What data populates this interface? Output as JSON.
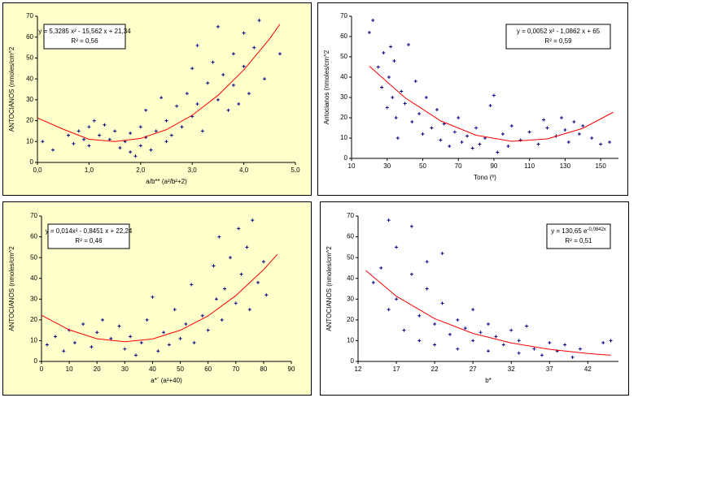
{
  "chart_data": [
    {
      "type": "scatter",
      "background": "#ffffcc",
      "ylabel": "ANTOCIANOS (nmoles/cm^2",
      "xlabel": "a/b** (a²/b²+2)",
      "equation": "y = 5,3285 x² - 15,562 x + 21,34",
      "r2": "R² = 0,56",
      "equation_corner": "top-left",
      "xlim": [
        0,
        5
      ],
      "xticks": [
        {
          "value": 0,
          "label": "0,0"
        },
        {
          "value": 1,
          "label": "1,0"
        },
        {
          "value": 2,
          "label": "2,0"
        },
        {
          "value": 3,
          "label": "3,0"
        },
        {
          "value": 4,
          "label": "4,0"
        },
        {
          "value": 5,
          "label": "5,0"
        }
      ],
      "ylim": [
        0,
        70
      ],
      "yticks": [
        0,
        10,
        20,
        30,
        40,
        50,
        60,
        70
      ],
      "series": [
        {
          "color": "#000080",
          "x": [
            0.1,
            0.3,
            0.6,
            0.7,
            0.8,
            0.9,
            1.0,
            1.0,
            1.1,
            1.2,
            1.3,
            1.4,
            1.5,
            1.6,
            1.7,
            1.8,
            1.8,
            1.9,
            2.0,
            2.0,
            2.1,
            2.1,
            2.2,
            2.3,
            2.4,
            2.5,
            2.5,
            2.6,
            2.7,
            2.8,
            2.9,
            3.0,
            3.0,
            3.1,
            3.1,
            3.2,
            3.3,
            3.4,
            3.5,
            3.5,
            3.6,
            3.7,
            3.8,
            3.8,
            3.9,
            4.0,
            4.0,
            4.1,
            4.2,
            4.3,
            4.4,
            4.7
          ],
          "values": [
            10,
            6,
            13,
            9,
            15,
            11,
            17,
            8,
            20,
            13,
            18,
            11,
            15,
            7,
            10,
            14,
            5,
            3,
            8,
            17,
            25,
            12,
            6,
            15,
            31,
            20,
            10,
            13,
            27,
            17,
            33,
            22,
            45,
            56,
            28,
            15,
            38,
            48,
            65,
            30,
            42,
            25,
            52,
            37,
            28,
            62,
            46,
            33,
            55,
            68,
            40,
            52
          ]
        }
      ],
      "trend": {
        "color": "#ff0000",
        "x": [
          0,
          0.5,
          1,
          1.5,
          2,
          2.5,
          3,
          3.5,
          4,
          4.5,
          4.7
        ],
        "values": [
          21.3,
          15.9,
          11.1,
          10.0,
          11.5,
          15.7,
          22.6,
          32.1,
          44.3,
          59.2,
          66.2
        ]
      }
    },
    {
      "type": "scatter",
      "background": "#ffffff",
      "ylabel": "Antocianos (nmoles/cm^2",
      "xlabel": "Tono (º)",
      "equation": "y = 0,0052 x² - 1,0862 x + 65",
      "r2": "R² = 0,59",
      "equation_corner": "top-right",
      "xlim": [
        10,
        160
      ],
      "xticks": [
        10,
        30,
        50,
        70,
        90,
        110,
        130,
        150
      ],
      "ylim": [
        0,
        70
      ],
      "yticks": [
        0,
        10,
        20,
        30,
        40,
        50,
        60,
        70
      ],
      "series": [
        {
          "color": "#000080",
          "x": [
            20,
            22,
            25,
            27,
            28,
            30,
            31,
            32,
            33,
            34,
            35,
            36,
            38,
            40,
            42,
            44,
            46,
            48,
            50,
            52,
            55,
            58,
            60,
            62,
            65,
            68,
            70,
            72,
            75,
            78,
            80,
            82,
            85,
            88,
            90,
            92,
            95,
            98,
            100,
            105,
            110,
            115,
            118,
            120,
            125,
            128,
            130,
            132,
            135,
            138,
            140,
            145,
            150,
            155
          ],
          "values": [
            62,
            68,
            45,
            35,
            52,
            25,
            40,
            55,
            30,
            48,
            20,
            10,
            33,
            27,
            56,
            18,
            38,
            22,
            12,
            30,
            15,
            24,
            9,
            17,
            6,
            13,
            20,
            8,
            11,
            5,
            15,
            7,
            10,
            26,
            31,
            3,
            12,
            6,
            16,
            9,
            13,
            7,
            19,
            15,
            11,
            20,
            14,
            8,
            18,
            12,
            16,
            10,
            7,
            8
          ]
        }
      ],
      "trend": {
        "color": "#ff0000",
        "x": [
          20,
          40,
          60,
          80,
          100,
          120,
          140,
          157
        ],
        "values": [
          45.4,
          29.9,
          18.5,
          11.4,
          8.4,
          9.6,
          14.8,
          22.7
        ]
      }
    },
    {
      "type": "scatter",
      "background": "#ffffcc",
      "ylabel": "ANTOCIANOS (nmoles/cm^2",
      "xlabel": "a*´ (a²+40)",
      "equation": "y = 0,014x² - 0,8451 x + 22,24",
      "r2": "R² = 0,46",
      "equation_corner": "top-left",
      "xlim": [
        0,
        90
      ],
      "xticks": [
        0,
        10,
        20,
        30,
        40,
        50,
        60,
        70,
        80,
        90
      ],
      "ylim": [
        0,
        70
      ],
      "yticks": [
        0,
        10,
        20,
        30,
        40,
        50,
        60,
        70
      ],
      "series": [
        {
          "color": "#000080",
          "x": [
            2,
            5,
            8,
            10,
            12,
            15,
            18,
            20,
            22,
            25,
            28,
            30,
            32,
            34,
            36,
            38,
            40,
            42,
            44,
            46,
            48,
            50,
            52,
            54,
            55,
            58,
            60,
            62,
            63,
            64,
            65,
            66,
            68,
            70,
            71,
            72,
            74,
            75,
            76,
            78,
            80,
            81
          ],
          "values": [
            8,
            12,
            5,
            15,
            9,
            18,
            7,
            14,
            20,
            11,
            17,
            6,
            12,
            3,
            9,
            20,
            31,
            5,
            14,
            8,
            25,
            11,
            18,
            37,
            9,
            22,
            15,
            46,
            30,
            60,
            20,
            35,
            50,
            28,
            64,
            42,
            55,
            25,
            68,
            38,
            48,
            32
          ]
        }
      ],
      "trend": {
        "color": "#ff0000",
        "x": [
          0,
          10,
          20,
          30,
          40,
          50,
          60,
          70,
          80,
          85
        ],
        "values": [
          22.2,
          15.2,
          10.9,
          9.5,
          10.8,
          15.0,
          21.9,
          31.7,
          44.2,
          51.6
        ]
      }
    },
    {
      "type": "scatter",
      "background": "#ffffff",
      "ylabel": "ANTOCIANOS (nmoles/cm^2",
      "xlabel": "b*",
      "equation": "y = 130,65 e",
      "equation_exponent": "-0,0842x",
      "r2": "R² = 0,51",
      "equation_corner": "top-right",
      "xlim": [
        12,
        46
      ],
      "xticks": [
        12,
        17,
        22,
        27,
        32,
        37,
        42
      ],
      "ylim": [
        0,
        70
      ],
      "yticks": [
        0,
        10,
        20,
        30,
        40,
        50,
        60,
        70
      ],
      "series": [
        {
          "color": "#000080",
          "x": [
            14,
            15,
            16,
            16,
            17,
            17,
            18,
            19,
            19,
            20,
            20,
            21,
            21,
            22,
            22,
            23,
            23,
            24,
            25,
            25,
            26,
            27,
            27,
            28,
            29,
            29,
            30,
            31,
            32,
            33,
            33,
            34,
            35,
            36,
            37,
            38,
            39,
            40,
            41,
            44,
            45
          ],
          "values": [
            38,
            45,
            68,
            25,
            55,
            30,
            15,
            42,
            65,
            22,
            10,
            48,
            35,
            18,
            8,
            28,
            52,
            13,
            20,
            6,
            16,
            25,
            10,
            14,
            18,
            5,
            12,
            8,
            15,
            4,
            10,
            17,
            6,
            3,
            9,
            5,
            8,
            2,
            6,
            9,
            10
          ]
        }
      ],
      "trend": {
        "color": "#ff0000",
        "x": [
          13,
          17,
          22,
          27,
          32,
          37,
          42,
          45
        ],
        "values": [
          43.8,
          31.4,
          20.6,
          13.5,
          8.9,
          5.8,
          3.8,
          3.0
        ]
      }
    }
  ]
}
